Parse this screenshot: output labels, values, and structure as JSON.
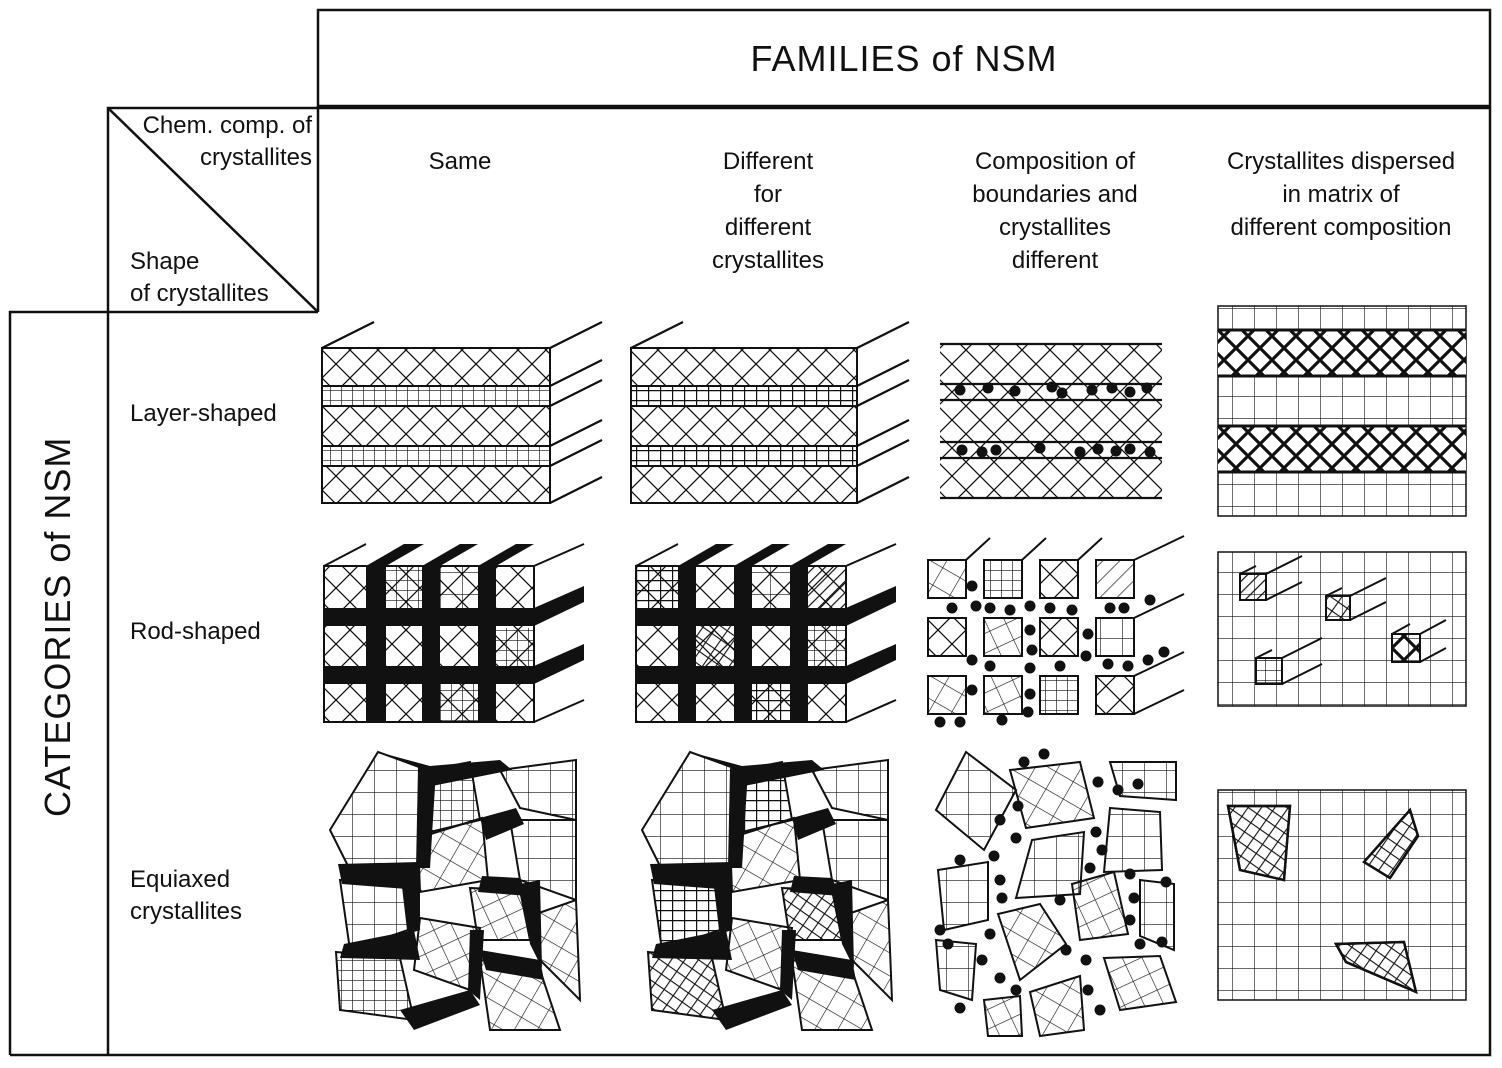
{
  "header": {
    "title": "FAMILIES of NSM"
  },
  "side": {
    "title": "CATEGORIES of NSM"
  },
  "corner": {
    "top": "Chem. comp. of\ncrystallites",
    "bottom": "Shape\nof crystallites"
  },
  "columns": [
    {
      "label": "Same"
    },
    {
      "label": "Different\nfor\ndifferent\ncrystallites"
    },
    {
      "label": "Composition of\nboundaries and\ncrystallites\ndifferent"
    },
    {
      "label": "Crystallites dispersed\nin matrix of\ndifferent composition"
    }
  ],
  "rows": [
    {
      "label": "Layer-shaped"
    },
    {
      "label": "Rod-shaped"
    },
    {
      "label": "Equiaxed\ncrystallites"
    }
  ],
  "icons": {
    "cells": [
      [
        "layer-same-illustration",
        "layer-different-illustration",
        "layer-boundaries-illustration",
        "layer-dispersed-illustration"
      ],
      [
        "rod-same-illustration",
        "rod-different-illustration",
        "rod-boundaries-illustration",
        "rod-dispersed-illustration"
      ],
      [
        "equiaxed-same-illustration",
        "equiaxed-different-illustration",
        "equiaxed-boundaries-illustration",
        "equiaxed-dispersed-illustration"
      ]
    ]
  }
}
